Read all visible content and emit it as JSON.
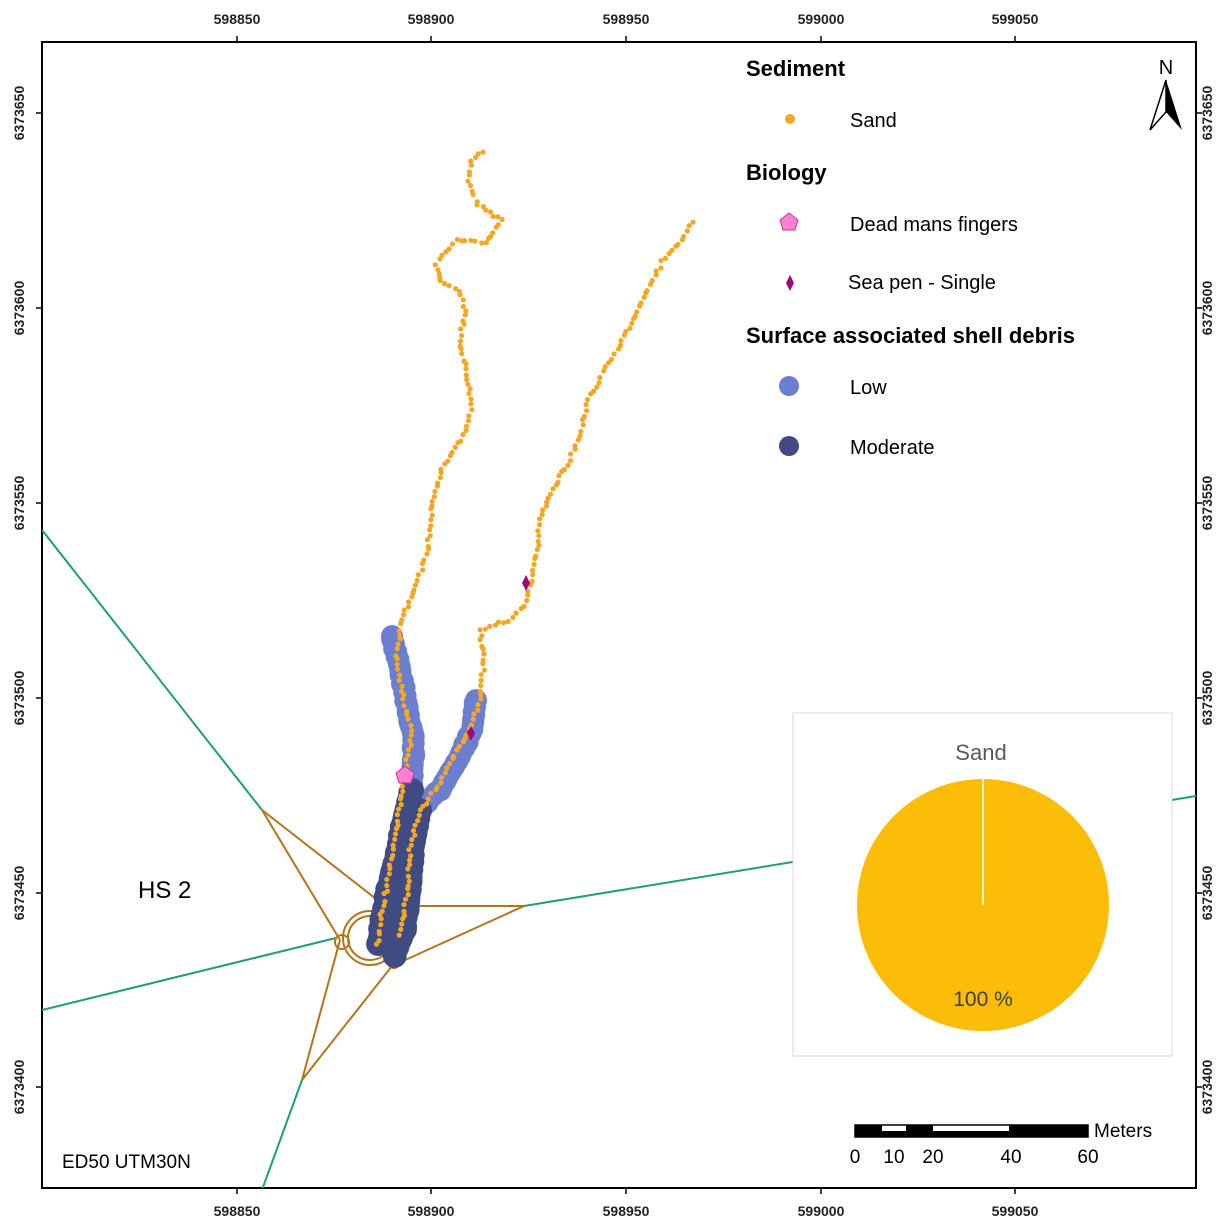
{
  "map": {
    "crs_label": "ED50 UTM30N",
    "area_label": "HS 2",
    "north_letter": "N",
    "x_ticks": [
      "598850",
      "598900",
      "598950",
      "599000",
      "599050"
    ],
    "y_ticks": [
      "6373650",
      "6373600",
      "6373550",
      "6373500",
      "6373450",
      "6373400"
    ]
  },
  "legend": {
    "sediment_heading": "Sediment",
    "sediment_items": [
      {
        "label": "Sand",
        "color": "#f5a623"
      }
    ],
    "biology_heading": "Biology",
    "biology_items": [
      {
        "label": "Dead mans fingers",
        "color": "#ff7fd0",
        "symbol": "pentagon"
      },
      {
        "label": "Sea pen",
        "suffix": " - Single",
        "color": "#9b0a7a",
        "symbol": "diamond"
      }
    ],
    "shell_heading": "Surface associated shell debris",
    "shell_items": [
      {
        "label": "Low",
        "color": "#6b7ed0"
      },
      {
        "label": "Moderate",
        "color": "#3f4b82"
      }
    ]
  },
  "scalebar": {
    "unit": "Meters",
    "labels": [
      "0",
      "10",
      "20",
      "40",
      "60"
    ]
  },
  "inset_chart": {
    "chart_data": {
      "type": "pie",
      "title": "Sand",
      "categories": [
        "Sand"
      ],
      "values": [
        100
      ],
      "data_labels": [
        "100 %"
      ],
      "colors": [
        "#fbbd07"
      ]
    }
  }
}
